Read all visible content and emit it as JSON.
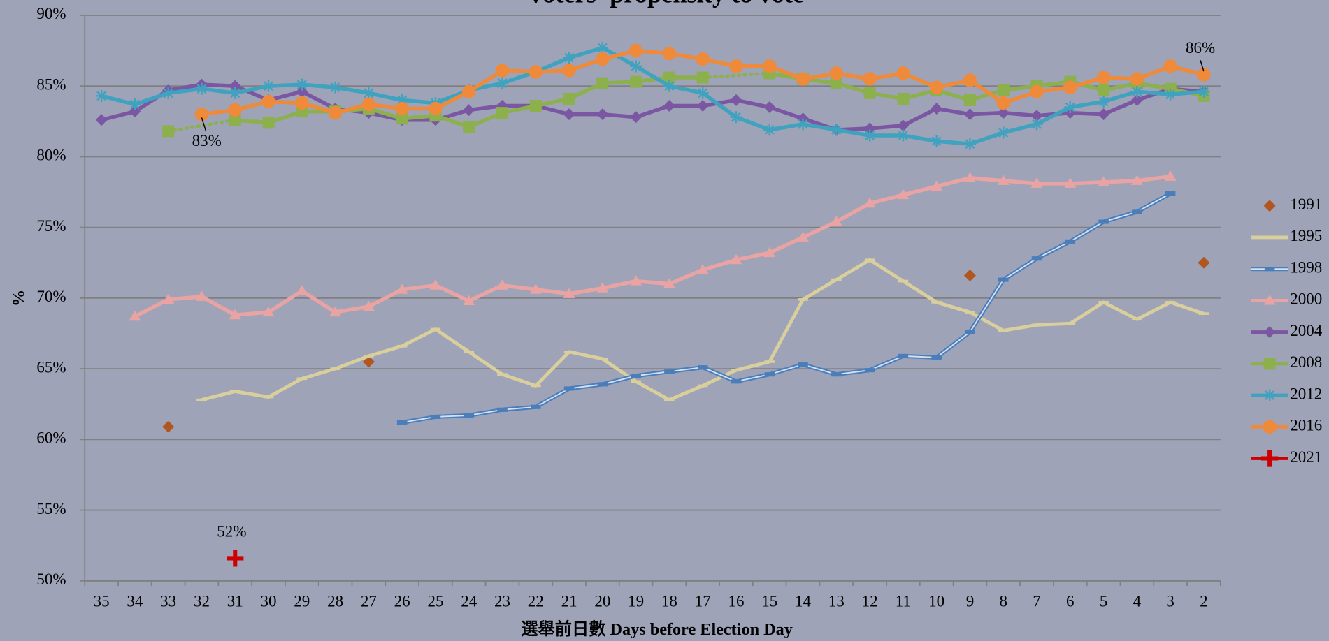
{
  "chart_data": {
    "type": "line",
    "title": "Voters' propensity to vote",
    "x_label": "選舉前日數  Days before Election Day",
    "y_label": "%",
    "categories": [
      "35",
      "34",
      "33",
      "32",
      "31",
      "30",
      "29",
      "28",
      "27",
      "26",
      "25",
      "24",
      "23",
      "22",
      "21",
      "20",
      "19",
      "18",
      "17",
      "16",
      "15",
      "14",
      "13",
      "12",
      "11",
      "10",
      "9",
      "8",
      "7",
      "6",
      "5",
      "4",
      "3",
      "2"
    ],
    "ylim": [
      50,
      90
    ],
    "yticks": [
      {
        "value": 50,
        "label": "50%"
      },
      {
        "value": 55,
        "label": "55%"
      },
      {
        "value": 60,
        "label": "60%"
      },
      {
        "value": 65,
        "label": "65%"
      },
      {
        "value": 70,
        "label": "70%"
      },
      {
        "value": 75,
        "label": "75%"
      },
      {
        "value": 80,
        "label": "80%"
      },
      {
        "value": 85,
        "label": "85%"
      },
      {
        "value": 90,
        "label": "90%"
      }
    ],
    "grid": true,
    "legend": "right",
    "series": [
      {
        "name": "1991",
        "color": "#b0561e",
        "marker": "diamond",
        "line": "none",
        "values": [
          null,
          null,
          60.9,
          null,
          null,
          null,
          null,
          null,
          65.5,
          null,
          null,
          null,
          null,
          null,
          null,
          null,
          null,
          null,
          null,
          null,
          null,
          null,
          null,
          null,
          null,
          null,
          71.6,
          null,
          null,
          null,
          null,
          null,
          null,
          72.5
        ]
      },
      {
        "name": "1995",
        "color": "#d8cf9c",
        "marker": "dash",
        "line": "solid",
        "values": [
          null,
          null,
          null,
          62.8,
          63.4,
          63.0,
          64.3,
          65.0,
          65.9,
          66.6,
          67.8,
          66.2,
          64.6,
          63.8,
          66.2,
          65.7,
          64.1,
          62.8,
          63.8,
          64.9,
          65.5,
          69.9,
          71.3,
          72.7,
          71.2,
          69.7,
          69.0,
          67.7,
          68.1,
          68.2,
          69.7,
          68.5,
          69.7,
          68.9
        ]
      },
      {
        "name": "1998",
        "color": "#4a7ebb",
        "marker": "rect",
        "line": "double",
        "values": [
          null,
          null,
          null,
          null,
          null,
          null,
          null,
          null,
          null,
          61.2,
          61.6,
          61.7,
          62.1,
          62.3,
          63.6,
          63.9,
          64.5,
          64.8,
          65.1,
          64.1,
          64.6,
          65.3,
          64.6,
          64.9,
          65.9,
          65.8,
          67.6,
          71.3,
          72.8,
          74.0,
          75.4,
          76.1,
          77.4,
          null
        ]
      },
      {
        "name": "2000",
        "color": "#e9a3a3",
        "marker": "triangle",
        "line": "solid",
        "values": [
          null,
          68.7,
          69.9,
          70.1,
          68.8,
          69.0,
          70.5,
          69.0,
          69.4,
          70.6,
          70.9,
          69.8,
          70.9,
          70.6,
          70.3,
          70.7,
          71.2,
          71.0,
          72.0,
          72.7,
          73.2,
          74.3,
          75.4,
          76.7,
          77.3,
          77.9,
          78.5,
          78.3,
          78.1,
          78.1,
          78.2,
          78.3,
          78.6,
          null
        ]
      },
      {
        "name": "2004",
        "color": "#7b56a2",
        "marker": "diamond",
        "line": "solid",
        "values": [
          82.6,
          83.2,
          84.7,
          85.1,
          85.0,
          84.0,
          84.6,
          83.4,
          83.1,
          82.6,
          82.6,
          83.3,
          83.6,
          83.6,
          83.0,
          83.0,
          82.8,
          83.6,
          83.6,
          84.0,
          83.5,
          82.7,
          81.9,
          82.0,
          82.2,
          83.4,
          83.0,
          83.1,
          82.9,
          83.1,
          83.0,
          84.0,
          84.8,
          84.6
        ]
      },
      {
        "name": "2008",
        "color": "#8cb04b",
        "marker": "square",
        "line": "solid",
        "values": [
          null,
          null,
          81.8,
          null,
          82.6,
          82.4,
          83.2,
          83.2,
          83.4,
          82.7,
          82.9,
          82.1,
          83.1,
          83.6,
          84.1,
          85.2,
          85.3,
          85.6,
          85.6,
          null,
          85.9,
          85.5,
          85.2,
          84.5,
          84.1,
          84.7,
          84.0,
          84.7,
          85.0,
          85.3,
          84.7,
          85.2,
          84.8,
          84.3
        ]
      },
      {
        "name": "2012",
        "color": "#3fa2be",
        "marker": "asterisk",
        "line": "solid",
        "values": [
          84.3,
          83.7,
          84.5,
          84.8,
          84.5,
          85.0,
          85.1,
          84.9,
          84.5,
          84.0,
          83.8,
          84.7,
          85.2,
          86.0,
          87.0,
          87.7,
          86.4,
          85.0,
          84.5,
          82.8,
          81.9,
          82.3,
          81.9,
          81.5,
          81.5,
          81.1,
          80.9,
          81.7,
          82.3,
          83.5,
          83.9,
          84.6,
          84.4,
          84.6
        ]
      },
      {
        "name": "2016",
        "color": "#ee8a3a",
        "marker": "circle",
        "line": "solid",
        "values": [
          null,
          null,
          null,
          83.0,
          83.3,
          83.9,
          83.8,
          83.1,
          83.7,
          83.4,
          83.4,
          84.6,
          86.1,
          86.0,
          86.1,
          86.9,
          87.5,
          87.3,
          86.9,
          86.4,
          86.4,
          85.5,
          85.9,
          85.5,
          85.9,
          84.9,
          85.4,
          83.8,
          84.6,
          84.9,
          85.6,
          85.5,
          86.4,
          85.8
        ],
        "value_labels": [
          null,
          null,
          null,
          "83%",
          null,
          null,
          null,
          null,
          null,
          null,
          null,
          null,
          null,
          null,
          null,
          null,
          null,
          null,
          null,
          null,
          null,
          null,
          null,
          null,
          null,
          null,
          null,
          null,
          null,
          null,
          null,
          null,
          null,
          "86%"
        ]
      },
      {
        "name": "2021",
        "color": "#cc0000",
        "marker": "plus",
        "line": "solid",
        "values": [
          null,
          null,
          null,
          null,
          51.6,
          null,
          null,
          null,
          null,
          null,
          null,
          null,
          null,
          null,
          null,
          null,
          null,
          null,
          null,
          null,
          null,
          null,
          null,
          null,
          null,
          null,
          null,
          null,
          null,
          null,
          null,
          null,
          null,
          null
        ],
        "value_labels": [
          null,
          null,
          null,
          null,
          "52%",
          null,
          null,
          null,
          null,
          null,
          null,
          null,
          null,
          null,
          null,
          null,
          null,
          null,
          null,
          null,
          null,
          null,
          null,
          null,
          null,
          null,
          null,
          null,
          null,
          null,
          null,
          null,
          null,
          null
        ]
      }
    ]
  }
}
